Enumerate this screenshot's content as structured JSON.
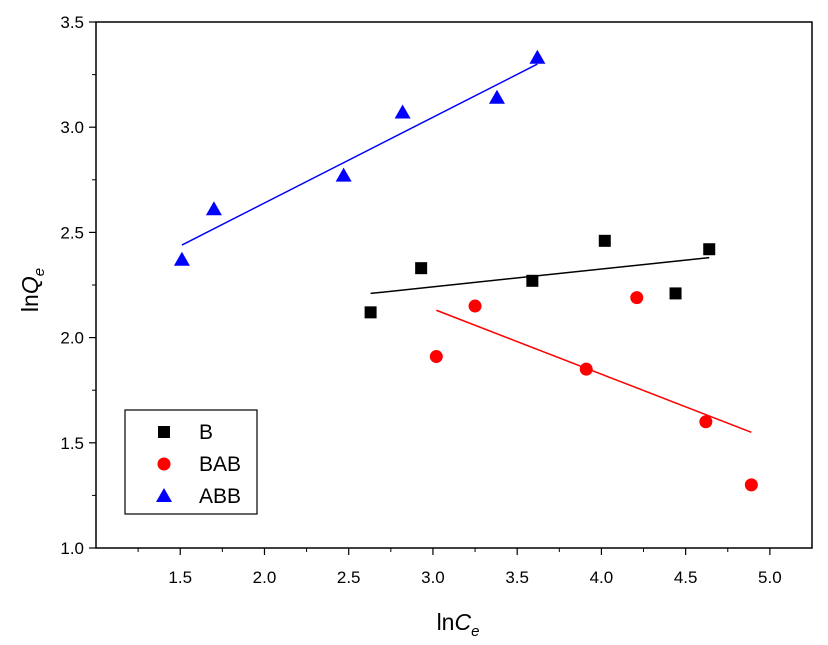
{
  "chart_data": {
    "type": "scatter",
    "xlabel": {
      "main": "ln",
      "italic": "C",
      "sub": "e"
    },
    "ylabel": {
      "main": "ln",
      "italic": "Q",
      "sub": "e"
    },
    "xlim": [
      1.0,
      5.25
    ],
    "ylim": [
      1.0,
      3.5
    ],
    "xticks": [
      "1.5",
      "2.0",
      "2.5",
      "3.0",
      "3.5",
      "4.0",
      "4.5",
      "5.0"
    ],
    "xtick_values": [
      1.5,
      2.0,
      2.5,
      3.0,
      3.5,
      4.0,
      4.5,
      5.0
    ],
    "yticks": [
      "1.0",
      "1.5",
      "2.0",
      "2.5",
      "3.0",
      "3.5"
    ],
    "ytick_values": [
      1.0,
      1.5,
      2.0,
      2.5,
      3.0,
      3.5
    ],
    "legend_position": "bottom-left",
    "series": [
      {
        "name": "B",
        "marker": "square",
        "color": "#000000",
        "points": [
          [
            2.63,
            2.12
          ],
          [
            2.93,
            2.33
          ],
          [
            3.59,
            2.27
          ],
          [
            4.02,
            2.46
          ],
          [
            4.44,
            2.21
          ],
          [
            4.64,
            2.42
          ]
        ],
        "fit": [
          [
            2.63,
            2.21
          ],
          [
            4.64,
            2.38
          ]
        ]
      },
      {
        "name": "BAB",
        "marker": "circle",
        "color": "#ff0000",
        "points": [
          [
            3.02,
            1.91
          ],
          [
            3.25,
            2.15
          ],
          [
            3.91,
            1.85
          ],
          [
            4.21,
            2.19
          ],
          [
            4.62,
            1.6
          ],
          [
            4.89,
            1.3
          ]
        ],
        "fit": [
          [
            3.02,
            2.13
          ],
          [
            4.89,
            1.55
          ]
        ]
      },
      {
        "name": "ABB",
        "marker": "triangle",
        "color": "#0000ff",
        "points": [
          [
            1.51,
            2.37
          ],
          [
            1.7,
            2.61
          ],
          [
            2.47,
            2.77
          ],
          [
            2.82,
            3.07
          ],
          [
            3.38,
            3.14
          ],
          [
            3.62,
            3.33
          ]
        ],
        "fit": [
          [
            1.51,
            2.44
          ],
          [
            3.62,
            3.3
          ]
        ]
      }
    ]
  }
}
